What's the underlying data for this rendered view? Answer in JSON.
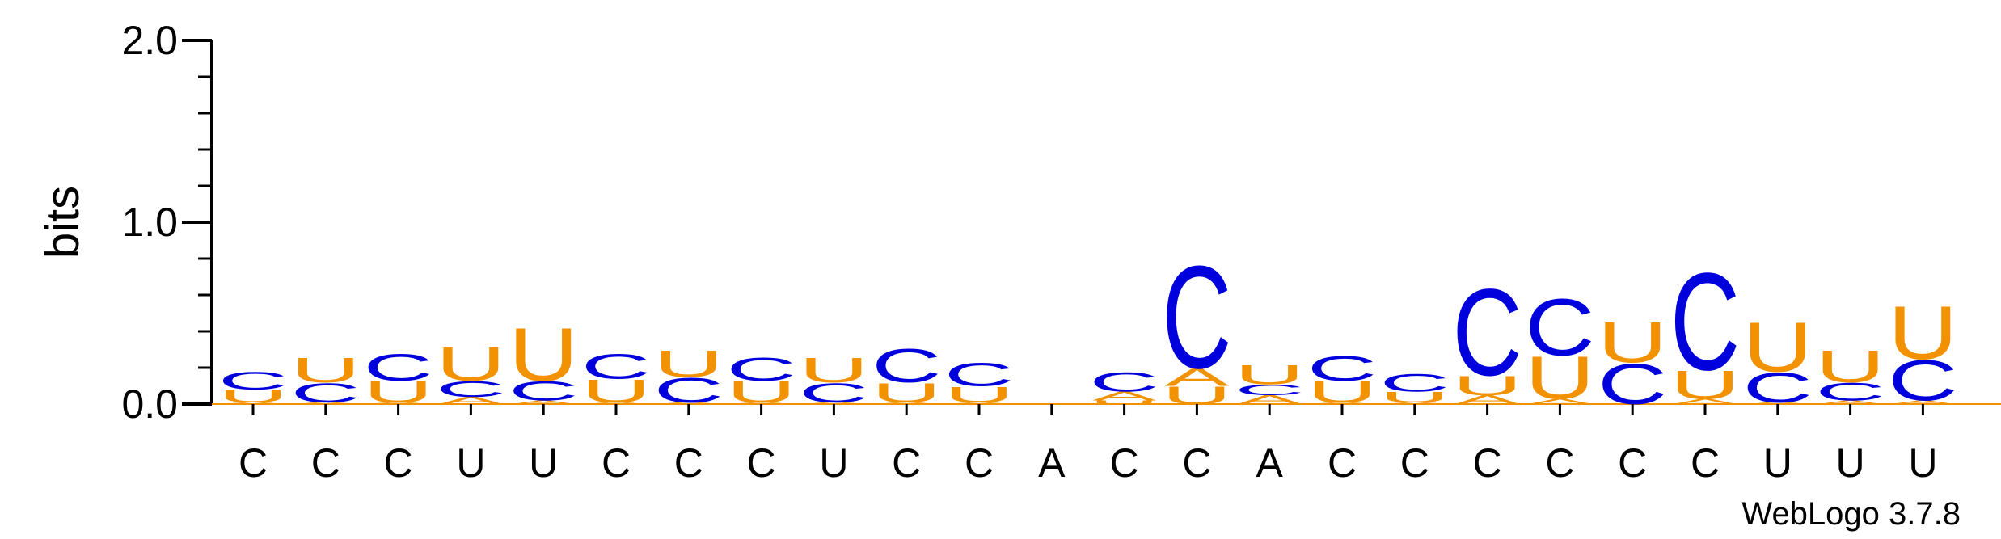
{
  "chart_data": {
    "type": "sequence-logo",
    "ylabel": "bits",
    "ylim": [
      0,
      2.0
    ],
    "yticks": [
      "0.0",
      "1.0",
      "2.0"
    ],
    "credit": "WebLogo 3.7.8",
    "colors": {
      "C": "#0000dd",
      "U": "#f39200",
      "A": "#f39200",
      "G": "#f39200"
    },
    "positions": [
      {
        "label": "C",
        "stack": [
          {
            "letter": "A",
            "value": 0.01
          },
          {
            "letter": "U",
            "value": 0.07
          },
          {
            "letter": "C",
            "value": 0.1
          }
        ]
      },
      {
        "label": "C",
        "stack": [
          {
            "letter": "A",
            "value": 0.01
          },
          {
            "letter": "C",
            "value": 0.11
          },
          {
            "letter": "U",
            "value": 0.14
          }
        ]
      },
      {
        "label": "C",
        "stack": [
          {
            "letter": "A",
            "value": 0.01
          },
          {
            "letter": "U",
            "value": 0.12
          },
          {
            "letter": "C",
            "value": 0.15
          }
        ]
      },
      {
        "label": "U",
        "stack": [
          {
            "letter": "A",
            "value": 0.04
          },
          {
            "letter": "C",
            "value": 0.09
          },
          {
            "letter": "U",
            "value": 0.19
          }
        ]
      },
      {
        "label": "U",
        "stack": [
          {
            "letter": "A",
            "value": 0.02
          },
          {
            "letter": "C",
            "value": 0.11
          },
          {
            "letter": "U",
            "value": 0.3
          }
        ]
      },
      {
        "label": "C",
        "stack": [
          {
            "letter": "A",
            "value": 0.01
          },
          {
            "letter": "U",
            "value": 0.13
          },
          {
            "letter": "C",
            "value": 0.14
          }
        ]
      },
      {
        "label": "C",
        "stack": [
          {
            "letter": "A",
            "value": 0.01
          },
          {
            "letter": "C",
            "value": 0.14
          },
          {
            "letter": "U",
            "value": 0.15
          }
        ]
      },
      {
        "label": "C",
        "stack": [
          {
            "letter": "A",
            "value": 0.01
          },
          {
            "letter": "U",
            "value": 0.12
          },
          {
            "letter": "C",
            "value": 0.13
          }
        ]
      },
      {
        "label": "U",
        "stack": [
          {
            "letter": "A",
            "value": 0.01
          },
          {
            "letter": "C",
            "value": 0.11
          },
          {
            "letter": "U",
            "value": 0.14
          }
        ]
      },
      {
        "label": "C",
        "stack": [
          {
            "letter": "A",
            "value": 0.01
          },
          {
            "letter": "U",
            "value": 0.11
          },
          {
            "letter": "C",
            "value": 0.19
          }
        ]
      },
      {
        "label": "C",
        "stack": [
          {
            "letter": "A",
            "value": 0.01
          },
          {
            "letter": "U",
            "value": 0.09
          },
          {
            "letter": "C",
            "value": 0.13
          }
        ]
      },
      {
        "label": "A",
        "stack": []
      },
      {
        "label": "C",
        "stack": [
          {
            "letter": "U",
            "value": 0.02
          },
          {
            "letter": "A",
            "value": 0.05
          },
          {
            "letter": "C",
            "value": 0.11
          }
        ]
      },
      {
        "label": "C",
        "stack": [
          {
            "letter": "U",
            "value": 0.1
          },
          {
            "letter": "A",
            "value": 0.1
          },
          {
            "letter": "C",
            "value": 0.58
          }
        ]
      },
      {
        "label": "A",
        "stack": [
          {
            "letter": "A",
            "value": 0.05
          },
          {
            "letter": "C",
            "value": 0.06
          },
          {
            "letter": "U",
            "value": 0.11
          }
        ]
      },
      {
        "label": "C",
        "stack": [
          {
            "letter": "A",
            "value": 0.01
          },
          {
            "letter": "U",
            "value": 0.12
          },
          {
            "letter": "C",
            "value": 0.14
          }
        ]
      },
      {
        "label": "C",
        "stack": [
          {
            "letter": "A",
            "value": 0.01
          },
          {
            "letter": "U",
            "value": 0.06
          },
          {
            "letter": "C",
            "value": 0.1
          }
        ]
      },
      {
        "label": "C",
        "stack": [
          {
            "letter": "A",
            "value": 0.05
          },
          {
            "letter": "U",
            "value": 0.11
          },
          {
            "letter": "C",
            "value": 0.49
          }
        ]
      },
      {
        "label": "C",
        "stack": [
          {
            "letter": "A",
            "value": 0.03
          },
          {
            "letter": "U",
            "value": 0.24
          },
          {
            "letter": "C",
            "value": 0.32
          }
        ]
      },
      {
        "label": "C",
        "stack": [
          {
            "letter": "C",
            "value": 0.23
          },
          {
            "letter": "U",
            "value": 0.23
          }
        ]
      },
      {
        "label": "C",
        "stack": [
          {
            "letter": "A",
            "value": 0.03
          },
          {
            "letter": "U",
            "value": 0.16
          },
          {
            "letter": "C",
            "value": 0.55
          }
        ]
      },
      {
        "label": "U",
        "stack": [
          {
            "letter": "A",
            "value": 0.01
          },
          {
            "letter": "C",
            "value": 0.17
          },
          {
            "letter": "U",
            "value": 0.28
          }
        ]
      },
      {
        "label": "U",
        "stack": [
          {
            "letter": "A",
            "value": 0.02
          },
          {
            "letter": "C",
            "value": 0.1
          },
          {
            "letter": "U",
            "value": 0.18
          }
        ]
      },
      {
        "label": "U",
        "stack": [
          {
            "letter": "A",
            "value": 0.02
          },
          {
            "letter": "C",
            "value": 0.23
          },
          {
            "letter": "U",
            "value": 0.3
          }
        ]
      }
    ]
  }
}
